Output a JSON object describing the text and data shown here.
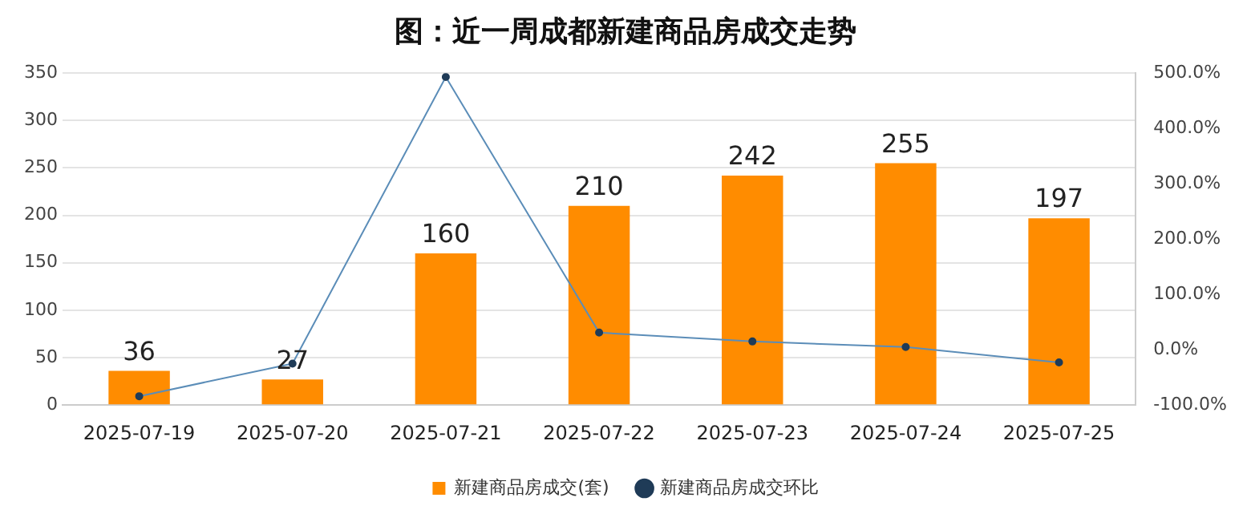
{
  "chart_data": {
    "type": "bar",
    "title": "图：近一周成都新建商品房成交走势",
    "categories": [
      "2025-07-19",
      "2025-07-20",
      "2025-07-21",
      "2025-07-22",
      "2025-07-23",
      "2025-07-24",
      "2025-07-25"
    ],
    "series": [
      {
        "name": "新建商品房成交(套)",
        "color": "#ff8c00",
        "values": [
          36,
          27,
          160,
          210,
          242,
          255,
          197
        ],
        "value_labels": [
          "36",
          "27",
          "160",
          "210",
          "242",
          "255",
          "197"
        ]
      },
      {
        "name": "新建商品房成交环比",
        "type": "line",
        "axis": "y2",
        "color": "#5b8db8",
        "marker": "circle",
        "values": [
          -84,
          -25,
          493,
          31,
          15,
          5,
          -23
        ]
      }
    ],
    "ylim": [
      0,
      350
    ],
    "yticks": [
      0,
      50,
      100,
      150,
      200,
      250,
      300,
      350
    ],
    "y2lim": [
      -100,
      500
    ],
    "y2ticks": [
      {
        "value": -100,
        "label": "-100.0%"
      },
      {
        "value": 0,
        "label": "0.0%"
      },
      {
        "value": 100,
        "label": "100.0%"
      },
      {
        "value": 200,
        "label": "200.0%"
      },
      {
        "value": 300,
        "label": "300.0%"
      },
      {
        "value": 400,
        "label": "400.0%"
      },
      {
        "value": 500,
        "label": "500.0%"
      }
    ],
    "grid": "y",
    "legend": "bottom"
  }
}
